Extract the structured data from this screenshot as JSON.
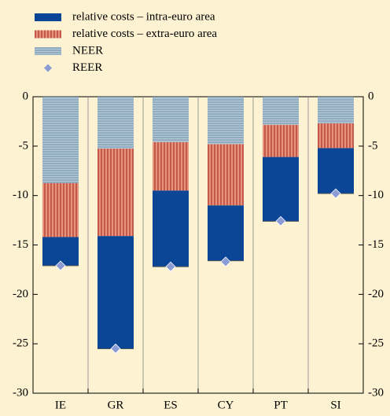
{
  "chart_data": {
    "type": "bar",
    "stacked": true,
    "categories": [
      "IE",
      "GR",
      "ES",
      "CY",
      "PT",
      "SI"
    ],
    "series": [
      {
        "name": "relative costs – intra-euro area",
        "color": "#0b4596",
        "pattern": "solid",
        "values": [
          -2.9,
          -11.4,
          -7.7,
          -5.6,
          -6.5,
          -4.6
        ]
      },
      {
        "name": "relative costs – extra-euro area",
        "color": "#e8947c",
        "pattern": "vertical-stripes",
        "values": [
          -5.45,
          -8.85,
          -4.9,
          -6.2,
          -3.25,
          -2.5
        ]
      },
      {
        "name": "NEER",
        "color": "#b4c8d8",
        "pattern": "horizontal-stripes",
        "values": [
          -8.75,
          -5.25,
          -4.6,
          -4.8,
          -2.85,
          -2.7
        ]
      },
      {
        "name": "REER",
        "color": "#8a9bd6",
        "type": "scatter",
        "values": [
          -17.1,
          -25.5,
          -17.2,
          -16.7,
          -12.6,
          -9.8
        ]
      }
    ],
    "ylim": [
      -30,
      0
    ],
    "yticks": [
      0,
      -5,
      -10,
      -15,
      -20,
      -25,
      -30
    ],
    "y2lim": [
      -30,
      0
    ],
    "y2ticks": [
      0,
      -5,
      -10,
      -15,
      -20,
      -25,
      -30
    ]
  }
}
